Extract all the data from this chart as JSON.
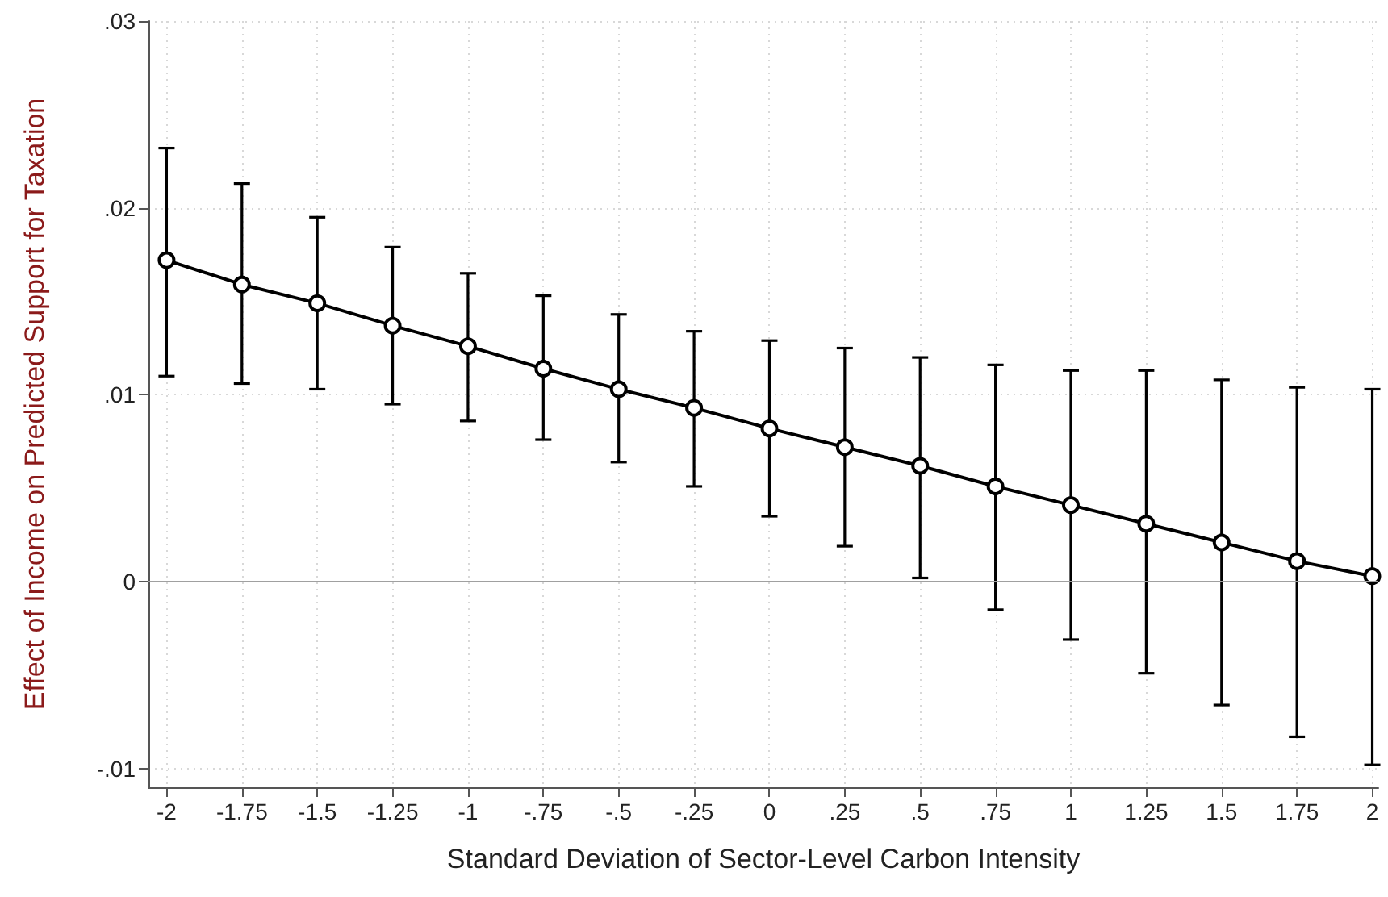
{
  "chart_data": {
    "type": "line",
    "xlabel": "Standard Deviation of Sector-Level Carbon Intensity",
    "ylabel": "Effect of Income on Predicted Support for Taxation",
    "x": [
      -2,
      -1.75,
      -1.5,
      -1.25,
      -1,
      -0.75,
      -0.5,
      -0.25,
      0,
      0.25,
      0.5,
      0.75,
      1,
      1.25,
      1.5,
      1.75,
      2
    ],
    "series": [
      {
        "color": "#000000",
        "values": [
          0.0172,
          0.0159,
          0.0149,
          0.0137,
          0.0126,
          0.0114,
          0.0103,
          0.0093,
          0.0082,
          0.0072,
          0.0062,
          0.0051,
          0.0041,
          0.0031,
          0.0021,
          0.0011,
          0.0003
        ],
        "errors": [
          [
            0.011,
            0.0232
          ],
          [
            0.0106,
            0.0213
          ],
          [
            0.0103,
            0.0195
          ],
          [
            0.0095,
            0.0179
          ],
          [
            0.0086,
            0.0165
          ],
          [
            0.0076,
            0.0153
          ],
          [
            0.0064,
            0.0143
          ],
          [
            0.0051,
            0.0134
          ],
          [
            0.0035,
            0.0129
          ],
          [
            0.0019,
            0.0125
          ],
          [
            0.0002,
            0.012
          ],
          [
            -0.0015,
            0.0116
          ],
          [
            -0.0031,
            0.0113
          ],
          [
            -0.0049,
            0.0113
          ],
          [
            -0.0066,
            0.0108
          ],
          [
            -0.0083,
            0.0104
          ],
          [
            -0.0098,
            0.0103
          ]
        ]
      }
    ],
    "xlim": [
      -2.06,
      2.02
    ],
    "xticks": [
      -2,
      {
        "value": -1.75,
        "label": "-1.75"
      },
      {
        "value": -1.5,
        "label": "-1.5"
      },
      {
        "value": -1.25,
        "label": "-1.25"
      },
      -1,
      {
        "value": -0.75,
        "label": "-.75"
      },
      {
        "value": -0.5,
        "label": "-.5"
      },
      {
        "value": -0.25,
        "label": "-.25"
      },
      0,
      {
        "value": 0.25,
        "label": ".25"
      },
      {
        "value": 0.5,
        "label": ".5"
      },
      {
        "value": 0.75,
        "label": ".75"
      },
      1,
      1.25,
      1.5,
      1.75,
      2
    ],
    "ylim": [
      -0.011,
      0.03
    ],
    "yticks": [
      {
        "value": -0.01,
        "label": "-.01"
      },
      0,
      {
        "value": 0.01,
        "label": ".01"
      },
      {
        "value": 0.02,
        "label": ".02"
      },
      {
        "value": 0.03,
        "label": ".03"
      }
    ],
    "ref_lines": [
      {
        "axis": "y",
        "value": 0,
        "color": "#a0a0a0"
      }
    ],
    "grid": true,
    "marker": "circle",
    "line_style": "solid"
  }
}
